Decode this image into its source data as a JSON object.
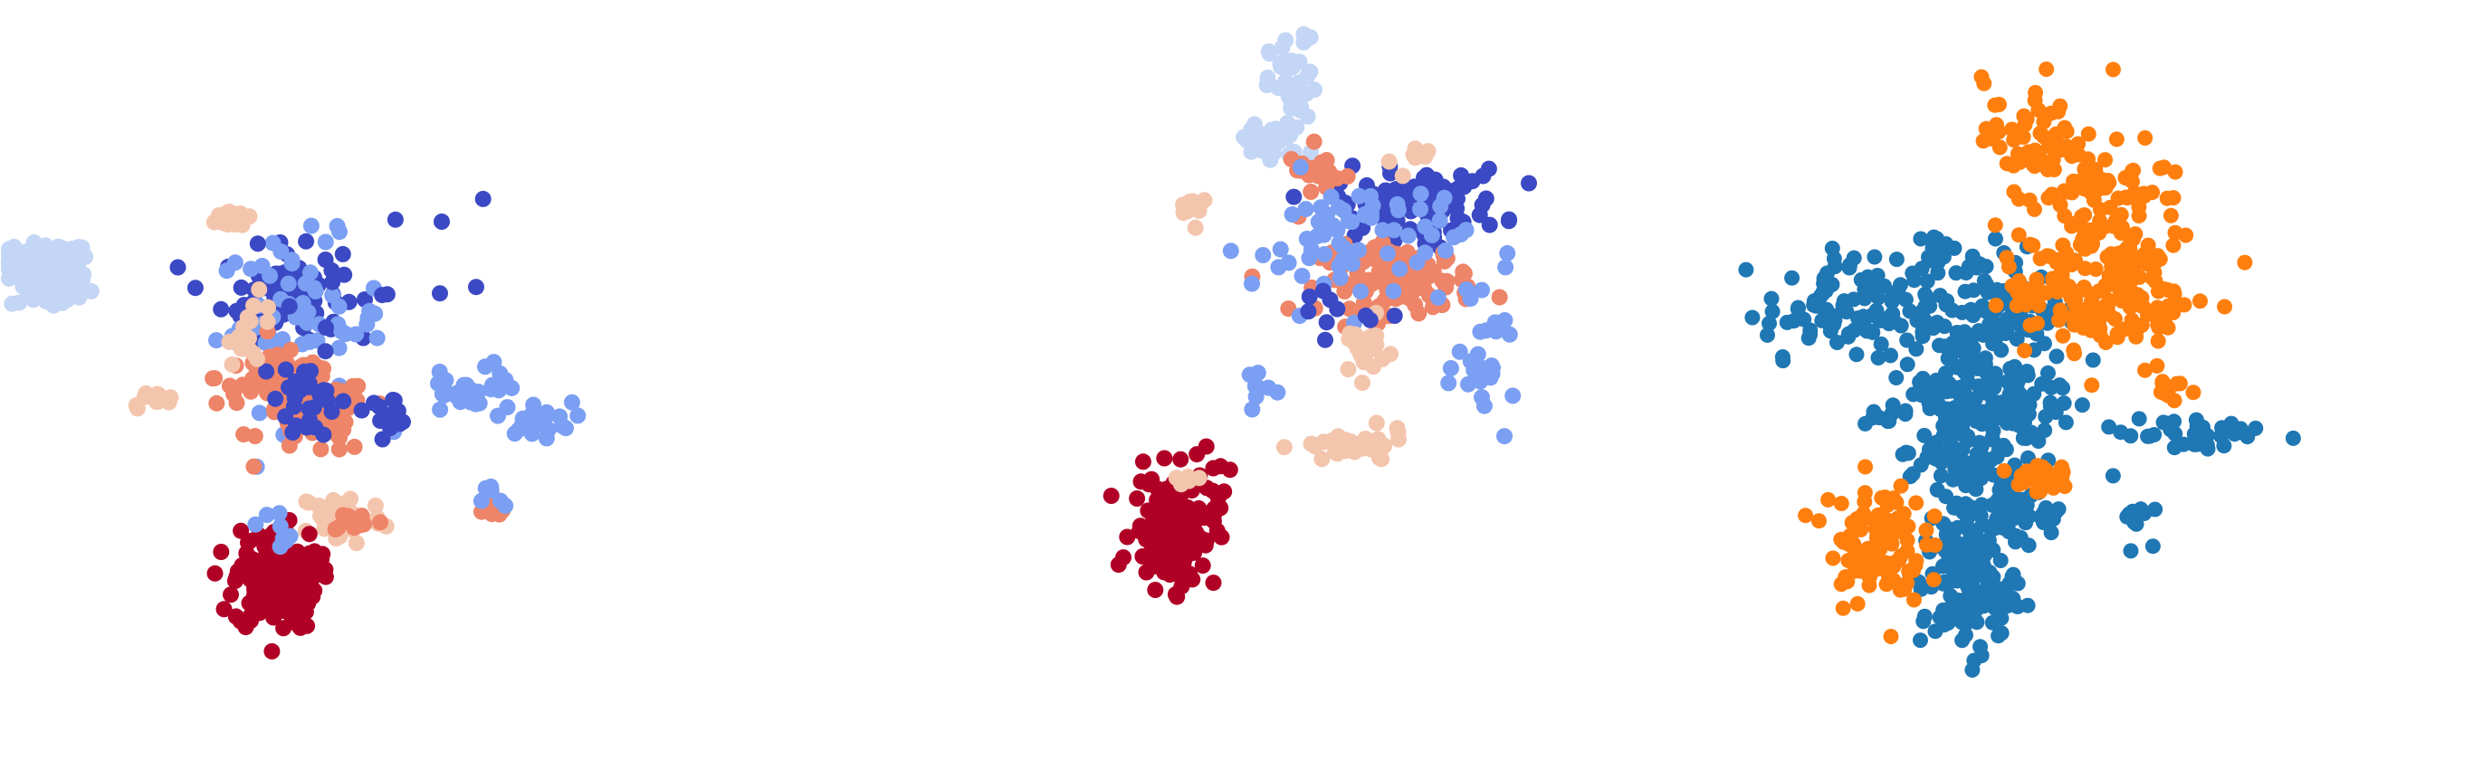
{
  "chart_data": [
    {
      "type": "scatter",
      "title": "",
      "xlabel": "",
      "ylabel": "",
      "axes_visible": false,
      "grid": false,
      "legend": "none",
      "colors": [
        "#c4d6f5",
        "#3b49c4",
        "#7b9ff3",
        "#f4c5ad",
        "#ee8468",
        "#b10026"
      ],
      "clusters": [
        {
          "color": "#c4d6f5",
          "center": [
            -12.2,
            5.1
          ],
          "spread": [
            0.8,
            0.3
          ],
          "n": 70
        },
        {
          "color": "#c4d6f5",
          "center": [
            -12.5,
            4.7
          ],
          "spread": [
            0.5,
            0.2
          ],
          "n": 30
        },
        {
          "color": "#c4d6f5",
          "center": [
            -11.9,
            4.05
          ],
          "spread": [
            0.7,
            0.35
          ],
          "n": 45
        },
        {
          "color": "#f4c5ad",
          "center": [
            -5.7,
            6.6
          ],
          "spread": [
            0.35,
            0.2
          ],
          "n": 18
        },
        {
          "color": "#3b49c4",
          "center": [
            -4.2,
            3.9
          ],
          "spread": [
            1.0,
            0.8
          ],
          "n": 85
        },
        {
          "color": "#7b9ff3",
          "center": [
            -3.6,
            2.8
          ],
          "spread": [
            1.4,
            1.5
          ],
          "n": 70
        },
        {
          "color": "#ee8468",
          "center": [
            -4.2,
            0.9
          ],
          "spread": [
            1.1,
            0.5
          ],
          "n": 60
        },
        {
          "color": "#ee8468",
          "center": [
            -3.1,
            -0.5
          ],
          "spread": [
            0.9,
            0.7
          ],
          "n": 75
        },
        {
          "color": "#3b49c4",
          "center": [
            -3.3,
            0.3
          ],
          "spread": [
            0.5,
            0.8
          ],
          "n": 30
        },
        {
          "color": "#f4c5ad",
          "center": [
            -5.2,
            2.6
          ],
          "spread": [
            0.4,
            0.6
          ],
          "n": 18
        },
        {
          "color": "#f4c5ad",
          "center": [
            -8.5,
            0.1
          ],
          "spread": [
            0.4,
            0.15
          ],
          "n": 14
        },
        {
          "color": "#3b49c4",
          "center": [
            -0.6,
            -0.3
          ],
          "spread": [
            0.4,
            0.25
          ],
          "n": 14
        },
        {
          "color": "#7b9ff3",
          "center": [
            1.6,
            0.2
          ],
          "spread": [
            0.6,
            0.4
          ],
          "n": 22
        },
        {
          "color": "#7b9ff3",
          "center": [
            4.3,
            -0.6
          ],
          "spread": [
            0.6,
            0.3
          ],
          "n": 22
        },
        {
          "color": "#7b9ff3",
          "center": [
            2.9,
            0.9
          ],
          "spread": [
            0.3,
            0.4
          ],
          "n": 8
        },
        {
          "color": "#ee8468",
          "center": [
            2.9,
            -3.9
          ],
          "spread": [
            0.2,
            0.25
          ],
          "n": 12
        },
        {
          "color": "#7b9ff3",
          "center": [
            2.9,
            -3.4
          ],
          "spread": [
            0.2,
            0.3
          ],
          "n": 6
        },
        {
          "color": "#f4c5ad",
          "center": [
            -2.2,
            -4.1
          ],
          "spread": [
            0.7,
            0.5
          ],
          "n": 45
        },
        {
          "color": "#ee8468",
          "center": [
            -1.7,
            -4.2
          ],
          "spread": [
            0.5,
            0.2
          ],
          "n": 12
        },
        {
          "color": "#b10026",
          "center": [
            -4.4,
            -6.3
          ],
          "spread": [
            0.7,
            0.9
          ],
          "n": 160
        },
        {
          "color": "#7b9ff3",
          "center": [
            -4.5,
            -4.5
          ],
          "spread": [
            0.3,
            0.4
          ],
          "n": 8
        },
        {
          "color": "#3b49c4",
          "center": [
            -1.0,
            4.5
          ],
          "spread": [
            2.5,
            2.0
          ],
          "n": 12
        }
      ]
    },
    {
      "type": "scatter",
      "title": "",
      "xlabel": "",
      "ylabel": "",
      "axes_visible": false,
      "grid": false,
      "legend": "none",
      "colors": [
        "#c4d6f5",
        "#3b49c4",
        "#7b9ff3",
        "#f4c5ad",
        "#ee8468",
        "#b10026"
      ],
      "clusters": [
        {
          "color": "#c4d6f5",
          "center": [
            2.4,
            11.2
          ],
          "spread": [
            0.4,
            0.9
          ],
          "n": 45
        },
        {
          "color": "#c4d6f5",
          "center": [
            1.6,
            9.3
          ],
          "spread": [
            0.6,
            0.4
          ],
          "n": 35
        },
        {
          "color": "#3b49c4",
          "center": [
            6.6,
            7.1
          ],
          "spread": [
            1.4,
            0.6
          ],
          "n": 100
        },
        {
          "color": "#ee8468",
          "center": [
            5.9,
            4.4
          ],
          "spread": [
            1.3,
            0.6
          ],
          "n": 110
        },
        {
          "color": "#ee8468",
          "center": [
            3.2,
            8.1
          ],
          "spread": [
            0.5,
            0.5
          ],
          "n": 18
        },
        {
          "color": "#7b9ff3",
          "center": [
            4.6,
            5.7
          ],
          "spread": [
            1.8,
            1.2
          ],
          "n": 75
        },
        {
          "color": "#f4c5ad",
          "center": [
            4.7,
            1.9
          ],
          "spread": [
            0.4,
            0.5
          ],
          "n": 22
        },
        {
          "color": "#f4c5ad",
          "center": [
            -1.0,
            7.1
          ],
          "spread": [
            0.3,
            0.35
          ],
          "n": 10
        },
        {
          "color": "#7b9ff3",
          "center": [
            8.9,
            1.3
          ],
          "spread": [
            0.5,
            1.0
          ],
          "n": 28
        },
        {
          "color": "#f4c5ad",
          "center": [
            4.4,
            -1.6
          ],
          "spread": [
            0.9,
            0.3
          ],
          "n": 38
        },
        {
          "color": "#3b49c4",
          "center": [
            3.7,
            3.3
          ],
          "spread": [
            0.7,
            0.5
          ],
          "n": 10
        },
        {
          "color": "#b10026",
          "center": [
            -1.6,
            -4.6
          ],
          "spread": [
            0.7,
            1.0
          ],
          "n": 150
        },
        {
          "color": "#b10026",
          "center": [
            -0.6,
            -2.1
          ],
          "spread": [
            0.4,
            0.5
          ],
          "n": 8
        },
        {
          "color": "#f4c5ad",
          "center": [
            -1.4,
            -2.9
          ],
          "spread": [
            0.3,
            0.2
          ],
          "n": 6
        },
        {
          "color": "#f4c5ad",
          "center": [
            6.3,
            8.6
          ],
          "spread": [
            0.3,
            0.3
          ],
          "n": 8
        },
        {
          "color": "#7b9ff3",
          "center": [
            1.0,
            0.5
          ],
          "spread": [
            0.3,
            0.5
          ],
          "n": 8
        }
      ]
    },
    {
      "type": "scatter",
      "title": "",
      "xlabel": "",
      "ylabel": "",
      "axes_visible": false,
      "grid": false,
      "legend": "none",
      "colors": [
        "#1f77b4",
        "#ff7f0e"
      ],
      "clusters": [
        {
          "color": "#1f77b4",
          "center": [
            -8.1,
            3.3
          ],
          "spread": [
            1.1,
            0.9
          ],
          "n": 70
        },
        {
          "color": "#1f77b4",
          "center": [
            -3.4,
            3.3
          ],
          "spread": [
            1.9,
            1.2
          ],
          "n": 130
        },
        {
          "color": "#1f77b4",
          "center": [
            -2.9,
            0.2
          ],
          "spread": [
            1.5,
            1.3
          ],
          "n": 160
        },
        {
          "color": "#1f77b4",
          "center": [
            -3.5,
            -2.2
          ],
          "spread": [
            0.9,
            1.1
          ],
          "n": 70
        },
        {
          "color": "#1f77b4",
          "center": [
            -4.6,
            5.5
          ],
          "spread": [
            0.3,
            0.3
          ],
          "n": 12
        },
        {
          "color": "#1f77b4",
          "center": [
            -6.4,
            -0.4
          ],
          "spread": [
            0.3,
            0.2
          ],
          "n": 10
        },
        {
          "color": "#1f77b4",
          "center": [
            -2.2,
            -4.2
          ],
          "spread": [
            0.7,
            0.4
          ],
          "n": 35
        },
        {
          "color": "#1f77b4",
          "center": [
            -1.3,
            -3.7
          ],
          "spread": [
            0.6,
            0.3
          ],
          "n": 20
        },
        {
          "color": "#1f77b4",
          "center": [
            -3.5,
            -6.5
          ],
          "spread": [
            0.8,
            1.2
          ],
          "n": 130
        },
        {
          "color": "#1f77b4",
          "center": [
            4.0,
            -1.1
          ],
          "spread": [
            1.2,
            0.4
          ],
          "n": 35
        },
        {
          "color": "#1f77b4",
          "center": [
            2.0,
            -4.1
          ],
          "spread": [
            0.3,
            0.4
          ],
          "n": 14
        },
        {
          "color": "#ff7f0e",
          "center": [
            0.8,
            6.5
          ],
          "spread": [
            1.5,
            1.5
          ],
          "n": 120
        },
        {
          "color": "#ff7f0e",
          "center": [
            -1.4,
            9.5
          ],
          "spread": [
            0.8,
            1.0
          ],
          "n": 55
        },
        {
          "color": "#ff7f0e",
          "center": [
            0.5,
            4.0
          ],
          "spread": [
            1.4,
            1.1
          ],
          "n": 90
        },
        {
          "color": "#ff7f0e",
          "center": [
            2.5,
            3.6
          ],
          "spread": [
            1.0,
            0.7
          ],
          "n": 40
        },
        {
          "color": "#ff7f0e",
          "center": [
            -6.6,
            -5.0
          ],
          "spread": [
            0.8,
            1.1
          ],
          "n": 100
        },
        {
          "color": "#ff7f0e",
          "center": [
            -1.1,
            -2.6
          ],
          "spread": [
            0.5,
            0.3
          ],
          "n": 30
        },
        {
          "color": "#ff7f0e",
          "center": [
            3.0,
            0.6
          ],
          "spread": [
            0.4,
            0.4
          ],
          "n": 14
        },
        {
          "color": "#ff7f0e",
          "center": [
            -1.1,
            4.2
          ],
          "spread": [
            0.4,
            0.3
          ],
          "n": 8
        },
        {
          "color": "#1f77b4",
          "center": [
            -3.5,
            -0.4
          ],
          "spread": [
            0.3,
            0.3
          ],
          "n": 12
        }
      ]
    }
  ]
}
